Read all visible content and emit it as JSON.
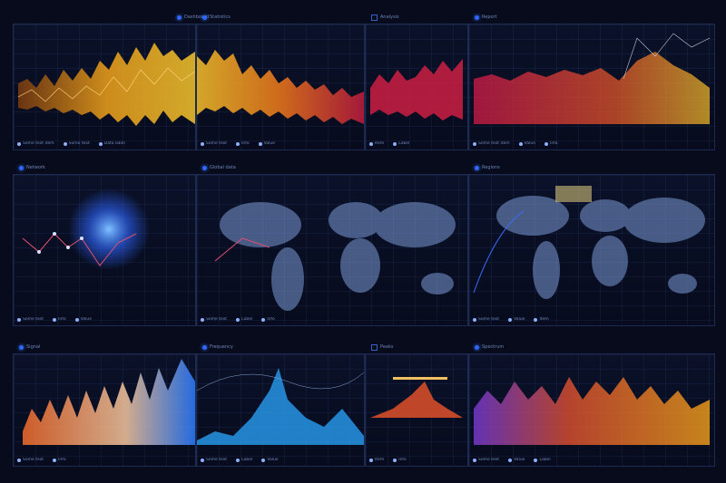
{
  "colors": {
    "bg": "#070b1b",
    "accent": "#2f66ff",
    "orange": "#f3a21b",
    "red": "#e0263d",
    "cyan": "#2aa7ff"
  },
  "rows": [
    {
      "name": "waveform-row-top",
      "panels": [
        {
          "header": "Dashboard",
          "icon": "gear-icon",
          "legend": [
            "Some text item",
            "Some text",
            "Data label"
          ]
        },
        {
          "header": "Statistics",
          "icon": "gear-icon",
          "legend": [
            "Some text",
            "Info",
            "Value"
          ]
        },
        {
          "header": "Analysis",
          "icon": "gear-icon",
          "legend": [
            "Item",
            "Label"
          ]
        },
        {
          "header": "Report",
          "icon": "gear-icon",
          "legend": [
            "Some text item",
            "Value",
            "Info"
          ]
        }
      ]
    },
    {
      "name": "map-row-middle",
      "panels": [
        {
          "header": "Network",
          "icon": "globe-icon",
          "legend": [
            "Some text",
            "Info",
            "Value"
          ]
        },
        {
          "header": "Global data",
          "icon": "globe-icon",
          "legend": [
            "Some text",
            "Label",
            "Info"
          ]
        },
        {
          "header": "Regions",
          "icon": "globe-icon",
          "legend": [
            "Some text",
            "Value",
            "Item"
          ]
        }
      ]
    },
    {
      "name": "waveform-row-bottom",
      "panels": [
        {
          "header": "Signal",
          "icon": "gear-icon",
          "legend": [
            "Some text",
            "Info"
          ]
        },
        {
          "header": "Frequency",
          "icon": "gear-icon",
          "legend": [
            "Some text",
            "Label",
            "Value"
          ]
        },
        {
          "header": "Peaks",
          "icon": "gear-icon",
          "legend": [
            "Item",
            "Info"
          ]
        },
        {
          "header": "Spectrum",
          "icon": "gear-icon",
          "legend": [
            "Some text",
            "Value",
            "Label"
          ]
        }
      ]
    }
  ]
}
